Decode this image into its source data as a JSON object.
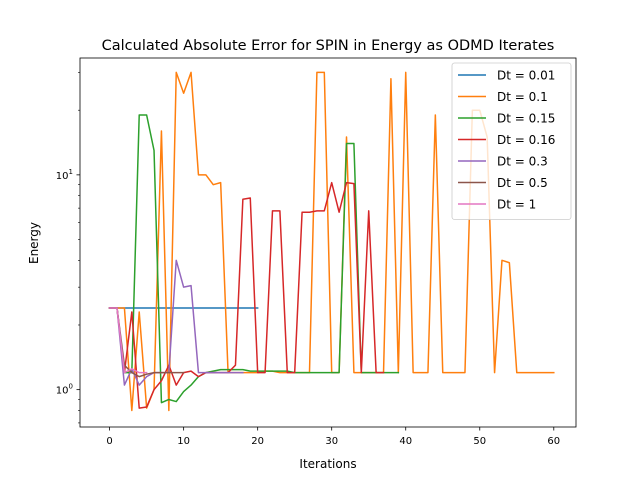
{
  "chart_data": {
    "type": "line",
    "title": "Calculated Absolute Error for SPIN in Energy as ODMD Iterates",
    "xlabel": "Iterations",
    "ylabel": "Energy",
    "xlim": [
      -4,
      63
    ],
    "ylim": [
      0.67,
      35
    ],
    "yscale": "log",
    "x_ticks": [
      0,
      10,
      20,
      30,
      40,
      50,
      60
    ],
    "y_ticks": [
      {
        "value": 1,
        "label": "10^0"
      },
      {
        "value": 10,
        "label": "10^1"
      }
    ],
    "y_minor_ticks": [
      0.7,
      0.8,
      0.9,
      2,
      3,
      4,
      5,
      6,
      7,
      8,
      9,
      20,
      30
    ],
    "grid": false,
    "legend": "top-right",
    "series": [
      {
        "name": "Dt = 0.01",
        "color": "#1f77b4",
        "x": [
          0,
          1,
          2,
          3,
          4,
          5,
          6,
          7,
          8,
          9,
          10,
          11,
          12,
          13,
          14,
          15,
          16,
          17,
          18,
          19,
          20
        ],
        "y": [
          2.4,
          2.4,
          2.4,
          2.4,
          2.4,
          2.4,
          2.4,
          2.4,
          2.4,
          2.4,
          2.4,
          2.4,
          2.4,
          2.4,
          2.4,
          2.4,
          2.4,
          2.4,
          2.4,
          2.4,
          2.4
        ]
      },
      {
        "name": "Dt = 0.1",
        "color": "#ff7f0e",
        "x": [
          0,
          1,
          2,
          3,
          4,
          5,
          6,
          7,
          8,
          9,
          10,
          11,
          12,
          13,
          14,
          15,
          16,
          17,
          18,
          19,
          20,
          21,
          22,
          23,
          24,
          25,
          26,
          27,
          28,
          29,
          30,
          31,
          32,
          33,
          34,
          35,
          36,
          37,
          38,
          39,
          40,
          41,
          42,
          43,
          44,
          45,
          46,
          47,
          48,
          49,
          50,
          51,
          52,
          53,
          54,
          55,
          56,
          57,
          58,
          59,
          60
        ],
        "y": [
          2.4,
          2.4,
          2.4,
          0.8,
          2.3,
          0.82,
          1.0,
          16,
          0.8,
          30,
          24,
          30,
          10,
          10,
          9,
          9.2,
          1.2,
          1.2,
          1.2,
          1.2,
          1.2,
          1.22,
          1.22,
          1.2,
          1.2,
          1.2,
          1.2,
          1.2,
          30,
          30,
          1.2,
          1.2,
          15,
          1.2,
          1.2,
          1.2,
          1.2,
          1.2,
          28,
          1.2,
          30,
          1.2,
          1.2,
          1.2,
          19,
          1.2,
          1.2,
          1.2,
          1.2,
          20,
          20,
          15,
          1.2,
          4,
          3.9,
          1.2,
          1.2,
          1.2,
          1.2,
          1.2,
          1.2
        ]
      },
      {
        "name": "Dt = 0.15",
        "color": "#2ca02c",
        "x": [
          0,
          1,
          2,
          3,
          4,
          5,
          6,
          7,
          8,
          9,
          10,
          11,
          12,
          13,
          14,
          15,
          16,
          17,
          18,
          19,
          20,
          21,
          22,
          23,
          24,
          25,
          26,
          27,
          28,
          29,
          30,
          31,
          32,
          33,
          34,
          35,
          36,
          37,
          38,
          39
        ],
        "y": [
          2.4,
          2.4,
          1.2,
          1.2,
          19,
          19,
          13,
          0.87,
          0.9,
          0.88,
          0.98,
          1.05,
          1.15,
          1.2,
          1.22,
          1.24,
          1.24,
          1.24,
          1.24,
          1.22,
          1.22,
          1.22,
          1.22,
          1.22,
          1.22,
          1.2,
          1.2,
          1.2,
          1.2,
          1.2,
          1.2,
          1.2,
          14,
          14,
          1.2,
          1.2,
          1.2,
          1.2,
          1.2,
          1.2
        ]
      },
      {
        "name": "Dt = 0.16",
        "color": "#d62728",
        "x": [
          0,
          1,
          2,
          3,
          4,
          5,
          6,
          7,
          8,
          9,
          10,
          11,
          12,
          13,
          14,
          15,
          16,
          17,
          18,
          19,
          20,
          21,
          22,
          23,
          24,
          25,
          26,
          27,
          28,
          29,
          30,
          31,
          32,
          33,
          34,
          35,
          36,
          37
        ],
        "y": [
          2.4,
          2.4,
          1.2,
          2.3,
          0.82,
          0.83,
          1.0,
          1.1,
          1.3,
          1.05,
          1.2,
          1.22,
          1.15,
          1.2,
          1.2,
          1.2,
          1.2,
          1.3,
          7.7,
          7.8,
          1.2,
          1.2,
          6.8,
          6.8,
          1.2,
          1.2,
          6.7,
          6.7,
          6.8,
          6.8,
          9.2,
          6.7,
          9.2,
          9.1,
          1.2,
          6.8,
          1.2,
          1.2
        ]
      },
      {
        "name": "Dt = 0.3",
        "color": "#9467bd",
        "x": [
          0,
          1,
          2,
          3,
          4,
          5,
          6,
          7,
          8,
          9,
          10,
          11,
          12,
          13,
          14,
          15,
          16,
          17,
          18
        ],
        "y": [
          2.4,
          2.4,
          1.05,
          1.25,
          1.05,
          1.15,
          1.2,
          1.2,
          1.2,
          4.0,
          3.0,
          3.05,
          1.2,
          1.2,
          1.2,
          1.2,
          1.2,
          1.2,
          1.2
        ]
      },
      {
        "name": "Dt = 0.5",
        "color": "#8c564b",
        "x": [
          0,
          1,
          2,
          3,
          4,
          5,
          6,
          7,
          8,
          9,
          10
        ],
        "y": [
          2.4,
          2.4,
          1.3,
          1.2,
          1.15,
          1.18,
          1.2,
          1.2,
          1.2,
          1.2,
          1.2
        ]
      },
      {
        "name": "Dt = 1",
        "color": "#e377c2",
        "x": [
          0,
          1,
          2,
          3,
          4,
          5
        ],
        "y": [
          2.4,
          2.4,
          1.2,
          1.25,
          1.2,
          1.2
        ]
      }
    ]
  }
}
